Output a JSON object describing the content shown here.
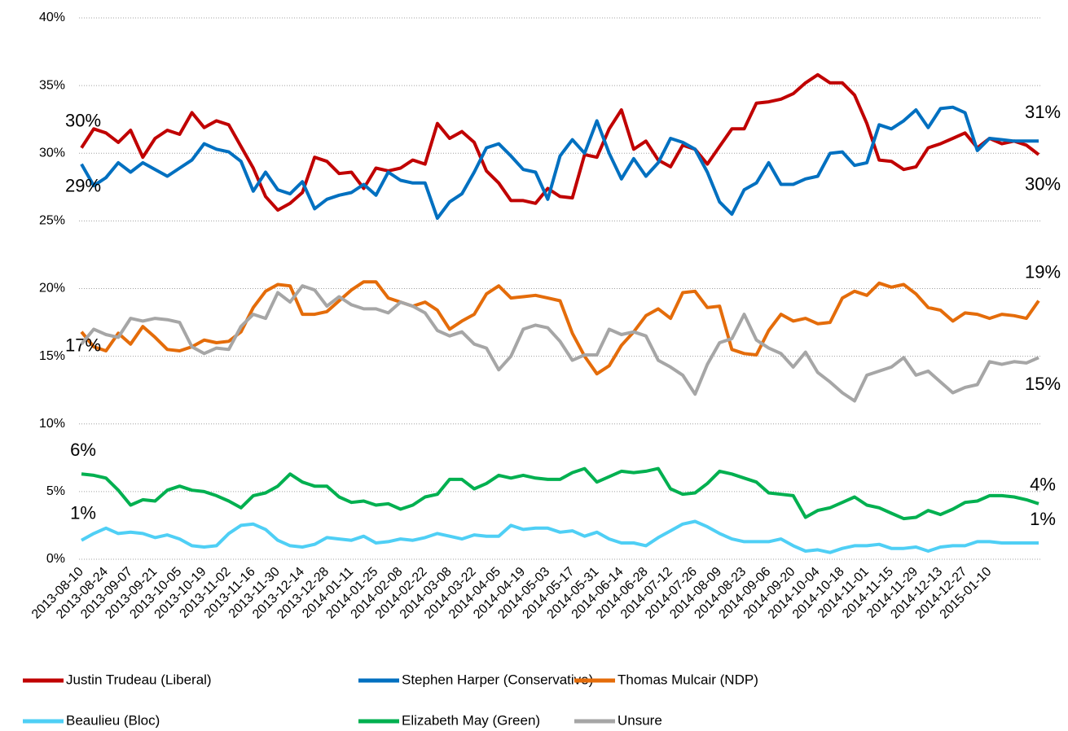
{
  "chart_data": {
    "type": "line",
    "categories": [
      "2013-08-10",
      null,
      "2013-08-24",
      null,
      "2013-09-07",
      null,
      "2013-09-21",
      null,
      "2013-10-05",
      null,
      "2013-10-19",
      null,
      "2013-11-02",
      null,
      "2013-11-16",
      null,
      "2013-11-30",
      null,
      "2013-12-14",
      null,
      "2013-12-28",
      null,
      "2014-01-11",
      null,
      "2014-01-25",
      null,
      "2014-02-08",
      null,
      "2014-02-22",
      null,
      "2014-03-08",
      null,
      "2014-03-22",
      null,
      "2014-04-05",
      null,
      "2014-04-19",
      null,
      "2014-05-03",
      null,
      "2014-05-17",
      null,
      "2014-05-31",
      null,
      "2014-06-14",
      null,
      "2014-06-28",
      null,
      "2014-07-12",
      null,
      "2014-07-26",
      null,
      "2014-08-09",
      null,
      "2014-08-23",
      null,
      "2014-09-06",
      null,
      "2014-09-20",
      null,
      "2014-10-04",
      null,
      "2014-10-18",
      null,
      "2014-11-01",
      null,
      "2014-11-15",
      null,
      "2014-11-29",
      null,
      "2014-12-13",
      null,
      "2014-12-27",
      null,
      "2015-01-10",
      null,
      null,
      null,
      null
    ],
    "series": [
      {
        "name": "Justin Trudeau (Liberal)",
        "color": "#c00000",
        "values": [
          30.4,
          31.8,
          31.5,
          30.8,
          31.7,
          29.7,
          31.1,
          31.7,
          31.4,
          33.0,
          31.9,
          32.4,
          32.1,
          30.5,
          28.9,
          26.8,
          25.8,
          26.3,
          27.1,
          29.7,
          29.4,
          28.5,
          28.6,
          27.4,
          28.9,
          28.7,
          28.9,
          29.5,
          29.2,
          32.2,
          31.1,
          31.6,
          30.8,
          28.7,
          27.8,
          26.5,
          26.5,
          26.3,
          27.4,
          26.8,
          26.7,
          29.9,
          29.7,
          31.8,
          33.2,
          30.3,
          30.9,
          29.5,
          29.0,
          30.6,
          30.3,
          29.2,
          30.5,
          31.8,
          31.8,
          33.7,
          33.8,
          34.0,
          34.4,
          35.2,
          35.8,
          35.2,
          35.2,
          34.3,
          32.2,
          29.5,
          29.4,
          28.8,
          29.0,
          30.4,
          30.7,
          31.1,
          31.5,
          30.4,
          31.1,
          30.7,
          30.9,
          30.6,
          29.9
        ],
        "value_labels": [
          "30%",
          null,
          null,
          null,
          null,
          null,
          null,
          null,
          null,
          null,
          null,
          null,
          null,
          null,
          null,
          null,
          null,
          null,
          null,
          null,
          null,
          null,
          null,
          null,
          null,
          null,
          null,
          null,
          null,
          null,
          null,
          null,
          null,
          null,
          null,
          null,
          null,
          null,
          null,
          null,
          null,
          null,
          null,
          null,
          null,
          null,
          null,
          null,
          null,
          null,
          null,
          null,
          null,
          null,
          null,
          null,
          null,
          null,
          null,
          null,
          null,
          null,
          null,
          null,
          null,
          null,
          null,
          null,
          null,
          null,
          null,
          null,
          null,
          null,
          null,
          null,
          null,
          null,
          "30%"
        ]
      },
      {
        "name": "Stephen Harper (Conservative)",
        "color": "#0070c0",
        "values": [
          29.2,
          27.6,
          28.2,
          29.3,
          28.6,
          29.3,
          28.8,
          28.3,
          28.9,
          29.5,
          30.7,
          30.3,
          30.1,
          29.4,
          27.2,
          28.6,
          27.3,
          27.0,
          27.9,
          25.9,
          26.6,
          26.9,
          27.1,
          27.7,
          26.9,
          28.6,
          28.0,
          27.8,
          27.8,
          25.2,
          26.4,
          27.0,
          28.6,
          30.4,
          30.7,
          29.8,
          28.8,
          28.6,
          26.6,
          29.8,
          31.0,
          30.0,
          32.4,
          30.0,
          28.1,
          29.6,
          28.3,
          29.3,
          31.1,
          30.8,
          30.3,
          28.6,
          26.4,
          25.5,
          27.3,
          27.8,
          29.3,
          27.7,
          27.7,
          28.1,
          28.3,
          30.0,
          30.1,
          29.1,
          29.3,
          32.1,
          31.8,
          32.4,
          33.2,
          31.9,
          33.3,
          33.4,
          33.0,
          30.2,
          31.1,
          31.0,
          30.9,
          30.9,
          30.9
        ],
        "value_labels": [
          "29%",
          null,
          null,
          null,
          null,
          null,
          null,
          null,
          null,
          null,
          null,
          null,
          null,
          null,
          null,
          null,
          null,
          null,
          null,
          null,
          null,
          null,
          null,
          null,
          null,
          null,
          null,
          null,
          null,
          null,
          null,
          null,
          null,
          null,
          null,
          null,
          null,
          null,
          null,
          null,
          null,
          null,
          null,
          null,
          null,
          null,
          null,
          null,
          null,
          null,
          null,
          null,
          null,
          null,
          null,
          null,
          null,
          null,
          null,
          null,
          null,
          null,
          null,
          null,
          null,
          null,
          null,
          null,
          null,
          null,
          null,
          null,
          null,
          null,
          null,
          null,
          null,
          null,
          "31%"
        ]
      },
      {
        "name": "Thomas Mulcair (NDP)",
        "color": "#e46c0a",
        "values": [
          16.8,
          15.7,
          15.4,
          16.7,
          15.9,
          17.2,
          16.4,
          15.5,
          15.4,
          15.7,
          16.2,
          16.0,
          16.1,
          16.8,
          18.6,
          19.8,
          20.3,
          20.2,
          18.1,
          18.1,
          18.3,
          19.1,
          19.9,
          20.5,
          20.5,
          19.3,
          19.0,
          18.7,
          19.0,
          18.4,
          17.0,
          17.6,
          18.1,
          19.6,
          20.2,
          19.3,
          19.4,
          19.5,
          19.3,
          19.1,
          16.7,
          15.0,
          13.7,
          14.3,
          15.8,
          16.8,
          18.0,
          18.5,
          17.8,
          19.7,
          19.8,
          18.6,
          18.7,
          15.5,
          15.2,
          15.1,
          16.9,
          18.1,
          17.6,
          17.8,
          17.4,
          17.5,
          19.3,
          19.8,
          19.5,
          20.4,
          20.1,
          20.3,
          19.6,
          18.6,
          18.4,
          17.6,
          18.2,
          18.1,
          17.8,
          18.1,
          18.0,
          17.8,
          19.1
        ],
        "value_labels": [
          "17%",
          null,
          null,
          null,
          null,
          null,
          null,
          null,
          null,
          null,
          null,
          null,
          null,
          null,
          null,
          null,
          null,
          null,
          null,
          null,
          null,
          null,
          null,
          null,
          null,
          null,
          null,
          null,
          null,
          null,
          null,
          null,
          null,
          null,
          null,
          null,
          null,
          null,
          null,
          null,
          null,
          null,
          null,
          null,
          null,
          null,
          null,
          null,
          null,
          null,
          null,
          null,
          null,
          null,
          null,
          null,
          null,
          null,
          null,
          null,
          null,
          null,
          null,
          null,
          null,
          null,
          null,
          null,
          null,
          null,
          null,
          null,
          null,
          null,
          null,
          null,
          null,
          null,
          "19%"
        ]
      },
      {
        "name": "Beaulieu (Bloc)",
        "color": "#4fcff5",
        "values": [
          1.4,
          1.9,
          2.3,
          1.9,
          2.0,
          1.9,
          1.6,
          1.8,
          1.5,
          1.0,
          0.9,
          1.0,
          1.9,
          2.5,
          2.6,
          2.2,
          1.4,
          1.0,
          0.9,
          1.1,
          1.6,
          1.5,
          1.4,
          1.7,
          1.2,
          1.3,
          1.5,
          1.4,
          1.6,
          1.9,
          1.7,
          1.5,
          1.8,
          1.7,
          1.7,
          2.5,
          2.2,
          2.3,
          2.3,
          2.0,
          2.1,
          1.7,
          2.0,
          1.5,
          1.2,
          1.2,
          1.0,
          1.6,
          2.1,
          2.6,
          2.8,
          2.4,
          1.9,
          1.5,
          1.3,
          1.3,
          1.3,
          1.5,
          1.0,
          0.6,
          0.7,
          0.5,
          0.8,
          1.0,
          1.0,
          1.1,
          0.8,
          0.8,
          0.9,
          0.6,
          0.9,
          1.0,
          1.0,
          1.3,
          1.3,
          1.2,
          1.2,
          1.2,
          1.2
        ],
        "value_labels": [
          "1%",
          null,
          null,
          null,
          null,
          null,
          null,
          null,
          null,
          null,
          null,
          null,
          null,
          null,
          null,
          null,
          null,
          null,
          null,
          null,
          null,
          null,
          null,
          null,
          null,
          null,
          null,
          null,
          null,
          null,
          null,
          null,
          null,
          null,
          null,
          null,
          null,
          null,
          null,
          null,
          null,
          null,
          null,
          null,
          null,
          null,
          null,
          null,
          null,
          null,
          null,
          null,
          null,
          null,
          null,
          null,
          null,
          null,
          null,
          null,
          null,
          null,
          null,
          null,
          null,
          null,
          null,
          null,
          null,
          null,
          null,
          null,
          null,
          null,
          null,
          null,
          null,
          null,
          "1%"
        ]
      },
      {
        "name": "Elizabeth May (Green)",
        "color": "#00b050",
        "values": [
          6.3,
          6.2,
          6.0,
          5.1,
          4.0,
          4.4,
          4.3,
          5.1,
          5.4,
          5.1,
          5.0,
          4.7,
          4.3,
          3.8,
          4.7,
          4.9,
          5.4,
          6.3,
          5.7,
          5.4,
          5.4,
          4.6,
          4.2,
          4.3,
          4.0,
          4.1,
          3.7,
          4.0,
          4.6,
          4.8,
          5.9,
          5.9,
          5.2,
          5.6,
          6.2,
          6.0,
          6.2,
          6.0,
          5.9,
          5.9,
          6.4,
          6.7,
          5.7,
          6.1,
          6.5,
          6.4,
          6.5,
          6.7,
          5.2,
          4.8,
          4.9,
          5.6,
          6.5,
          6.3,
          6.0,
          5.7,
          4.9,
          4.8,
          4.7,
          3.1,
          3.6,
          3.8,
          4.2,
          4.6,
          4.0,
          3.8,
          3.4,
          3.0,
          3.1,
          3.6,
          3.3,
          3.7,
          4.2,
          4.3,
          4.7,
          4.7,
          4.6,
          4.4,
          4.1
        ],
        "value_labels": [
          "6%",
          null,
          null,
          null,
          null,
          null,
          null,
          null,
          null,
          null,
          null,
          null,
          null,
          null,
          null,
          null,
          null,
          null,
          null,
          null,
          null,
          null,
          null,
          null,
          null,
          null,
          null,
          null,
          null,
          null,
          null,
          null,
          null,
          null,
          null,
          null,
          null,
          null,
          null,
          null,
          null,
          null,
          null,
          null,
          null,
          null,
          null,
          null,
          null,
          null,
          null,
          null,
          null,
          null,
          null,
          null,
          null,
          null,
          null,
          null,
          null,
          null,
          null,
          null,
          null,
          null,
          null,
          null,
          null,
          null,
          null,
          null,
          null,
          null,
          null,
          null,
          null,
          null,
          "4%"
        ]
      },
      {
        "name": "Unsure",
        "color": "#a6a6a6",
        "values": [
          15.9,
          17.0,
          16.6,
          16.4,
          17.8,
          17.6,
          17.8,
          17.7,
          17.5,
          15.7,
          15.2,
          15.6,
          15.5,
          17.2,
          18.1,
          17.8,
          19.7,
          19.0,
          20.2,
          19.9,
          18.7,
          19.4,
          18.8,
          18.5,
          18.5,
          18.2,
          19.0,
          18.7,
          18.2,
          16.9,
          16.5,
          16.8,
          15.9,
          15.6,
          14.0,
          15.0,
          17.0,
          17.3,
          17.1,
          16.1,
          14.7,
          15.1,
          15.1,
          17.0,
          16.6,
          16.8,
          16.5,
          14.7,
          14.2,
          13.6,
          12.2,
          14.4,
          16.0,
          16.3,
          18.1,
          16.2,
          15.6,
          15.2,
          14.2,
          15.3,
          13.8,
          13.1,
          12.3,
          11.7,
          13.6,
          13.9,
          14.2,
          14.9,
          13.6,
          13.9,
          13.1,
          12.3,
          12.7,
          12.9,
          14.6,
          14.4,
          14.6,
          14.5,
          14.9
        ],
        "value_labels": [
          null,
          null,
          null,
          null,
          null,
          null,
          null,
          null,
          null,
          null,
          null,
          null,
          null,
          null,
          null,
          null,
          null,
          null,
          null,
          null,
          null,
          null,
          null,
          null,
          null,
          null,
          null,
          null,
          null,
          null,
          null,
          null,
          null,
          null,
          null,
          null,
          null,
          null,
          null,
          null,
          null,
          null,
          null,
          null,
          null,
          null,
          null,
          null,
          null,
          null,
          null,
          null,
          null,
          null,
          null,
          null,
          null,
          null,
          null,
          null,
          null,
          null,
          null,
          null,
          null,
          null,
          null,
          null,
          null,
          null,
          null,
          null,
          null,
          null,
          null,
          null,
          null,
          null,
          "15%"
        ]
      }
    ],
    "ylim": [
      0,
      40
    ],
    "yticks": [
      {
        "value": 0,
        "label": "0%"
      },
      {
        "value": 5,
        "label": "5%"
      },
      {
        "value": 10,
        "label": "10%"
      },
      {
        "value": 15,
        "label": "15%"
      },
      {
        "value": 20,
        "label": "20%"
      },
      {
        "value": 25,
        "label": "25%"
      },
      {
        "value": 30,
        "label": "30%"
      },
      {
        "value": 35,
        "label": "35%"
      },
      {
        "value": 40,
        "label": "40%"
      }
    ],
    "grid": true,
    "legend": "bottom"
  }
}
